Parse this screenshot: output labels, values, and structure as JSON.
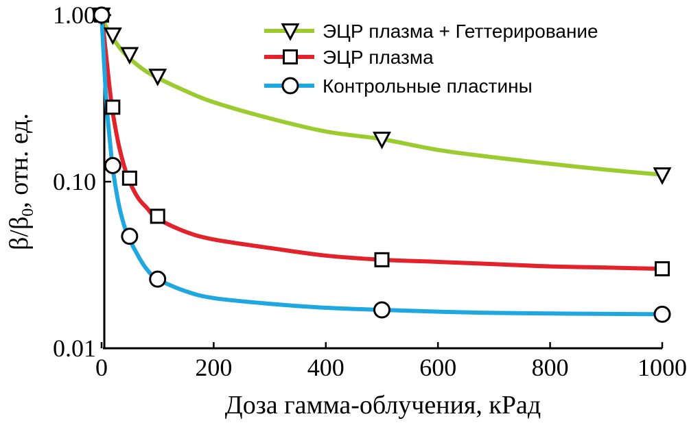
{
  "chart_data": {
    "type": "line",
    "xlabel": "Доза гамма-облучения, кРад",
    "ylabel_main": "β/β",
    "ylabel_sub": "0",
    "ylabel_rest": ", отн. ед.",
    "xlim": [
      0,
      1000
    ],
    "ylim": [
      0.01,
      1.0
    ],
    "yscale": "log",
    "x_ticks": [
      "0",
      "200",
      "400",
      "600",
      "800",
      "1000"
    ],
    "x_tick_values": [
      0,
      200,
      400,
      600,
      800,
      1000
    ],
    "y_ticks": [
      "1.00",
      "0.10",
      "0.01"
    ],
    "y_tick_values": [
      1.0,
      0.1,
      0.01
    ],
    "grid": false,
    "legend_position": "top-right",
    "series": [
      {
        "name": "ЭЦР плазма + Геттерирование",
        "color": "#9BCB2F",
        "marker": "triangle-down",
        "points": [
          [
            0,
            1.0
          ],
          [
            20,
            0.76
          ],
          [
            50,
            0.58
          ],
          [
            100,
            0.43
          ],
          [
            500,
            0.18
          ],
          [
            1000,
            0.11
          ]
        ],
        "curve": [
          [
            0,
            1.0
          ],
          [
            5,
            0.9
          ],
          [
            10,
            0.83
          ],
          [
            20,
            0.73
          ],
          [
            35,
            0.62
          ],
          [
            50,
            0.55
          ],
          [
            75,
            0.47
          ],
          [
            100,
            0.42
          ],
          [
            150,
            0.35
          ],
          [
            200,
            0.3
          ],
          [
            300,
            0.24
          ],
          [
            400,
            0.2
          ],
          [
            500,
            0.18
          ],
          [
            600,
            0.155
          ],
          [
            700,
            0.14
          ],
          [
            800,
            0.128
          ],
          [
            900,
            0.118
          ],
          [
            1000,
            0.11
          ]
        ]
      },
      {
        "name": "ЭЦР плазма",
        "color": "#E3232C",
        "marker": "square",
        "points": [
          [
            0,
            1.0
          ],
          [
            20,
            0.28
          ],
          [
            50,
            0.105
          ],
          [
            100,
            0.062
          ],
          [
            500,
            0.034
          ],
          [
            1000,
            0.03
          ]
        ],
        "curve": [
          [
            0,
            1.0
          ],
          [
            5,
            0.72
          ],
          [
            10,
            0.5
          ],
          [
            15,
            0.35
          ],
          [
            20,
            0.26
          ],
          [
            30,
            0.17
          ],
          [
            40,
            0.125
          ],
          [
            50,
            0.1
          ],
          [
            65,
            0.08
          ],
          [
            80,
            0.07
          ],
          [
            100,
            0.06
          ],
          [
            150,
            0.05
          ],
          [
            200,
            0.045
          ],
          [
            300,
            0.04
          ],
          [
            400,
            0.036
          ],
          [
            500,
            0.034
          ],
          [
            600,
            0.033
          ],
          [
            700,
            0.032
          ],
          [
            800,
            0.031
          ],
          [
            900,
            0.0305
          ],
          [
            1000,
            0.03
          ]
        ]
      },
      {
        "name": "Контрольные пластины",
        "color": "#1FA7DF",
        "marker": "circle",
        "points": [
          [
            0,
            1.0
          ],
          [
            20,
            0.125
          ],
          [
            50,
            0.047
          ],
          [
            100,
            0.026
          ],
          [
            500,
            0.017
          ],
          [
            1000,
            0.016
          ]
        ],
        "curve": [
          [
            0,
            1.0
          ],
          [
            4,
            0.55
          ],
          [
            8,
            0.32
          ],
          [
            12,
            0.22
          ],
          [
            16,
            0.16
          ],
          [
            20,
            0.12
          ],
          [
            30,
            0.075
          ],
          [
            40,
            0.055
          ],
          [
            50,
            0.045
          ],
          [
            65,
            0.036
          ],
          [
            80,
            0.03
          ],
          [
            100,
            0.026
          ],
          [
            150,
            0.022
          ],
          [
            200,
            0.02
          ],
          [
            300,
            0.0185
          ],
          [
            400,
            0.0175
          ],
          [
            500,
            0.017
          ],
          [
            700,
            0.0163
          ],
          [
            1000,
            0.016
          ]
        ]
      }
    ]
  }
}
